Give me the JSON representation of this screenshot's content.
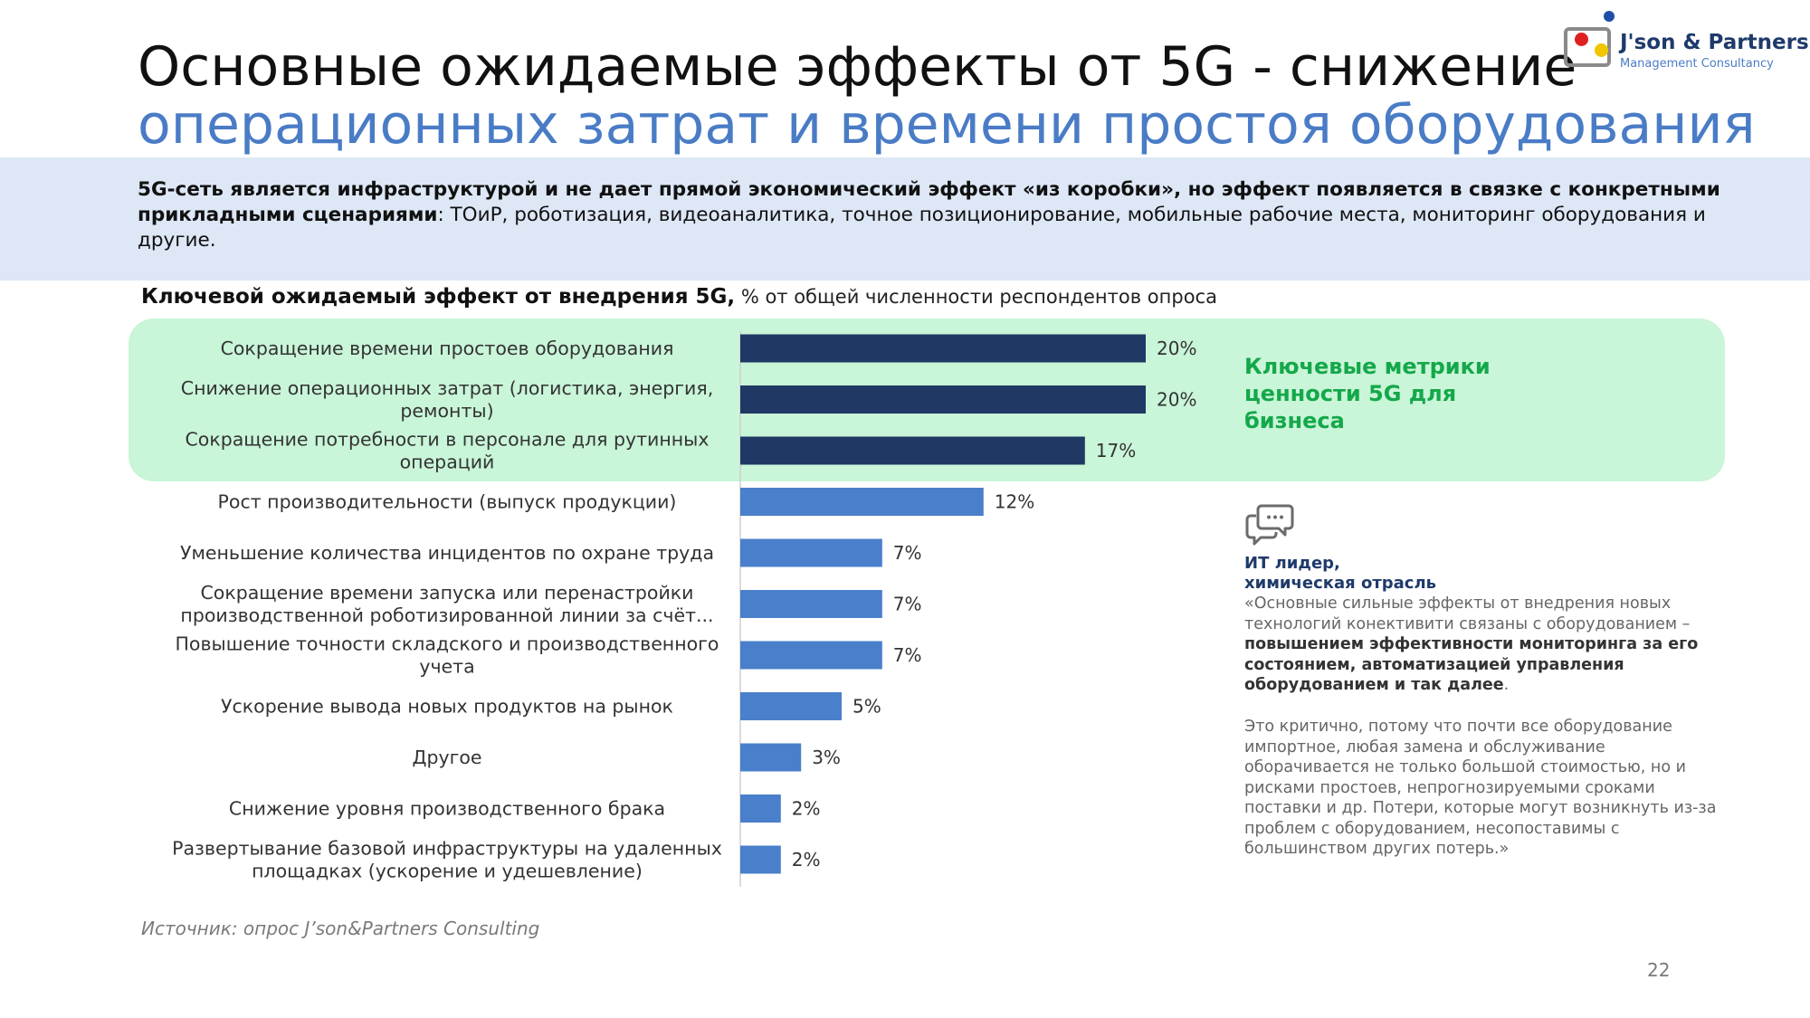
{
  "header": {
    "title_line1": "Основные ожидаемые эффекты от 5G - снижение",
    "title_line2": "операционных затрат и времени простоя оборудования"
  },
  "logo": {
    "name": "J'son & Partners",
    "subtitle": "Management Consultancy"
  },
  "summary": {
    "bold_part": "5G-сеть является инфраструктурой и не дает прямой экономический эффект «из коробки», но эффект появляется в связке с конкретными прикладными сценариями",
    "rest_part": ": ТОиР, роботизация, видеоаналитика, точное позиционирование, мобильные рабочие места, мониторинг оборудования и другие."
  },
  "chart_title": {
    "bold": "Ключевой ожидаемый эффект от внедрения 5G,",
    "unit": " % от общей численности респондентов опроса"
  },
  "highlight_label": "Ключевые метрики ценности 5G для бизнеса",
  "chart_data": {
    "type": "bar",
    "orientation": "horizontal",
    "title": "Ключевой ожидаемый эффект от внедрения 5G, % от общей численности респондентов опроса",
    "categories": [
      "Сокращение времени простоев оборудования",
      "Снижение операционных затрат (логистика, энергия, ремонты)",
      "Сокращение потребности в персонале для рутинных операций",
      "Рост производительности (выпуск продукции)",
      "Уменьшение количества инцидентов по охране труда",
      "Сокращение времени запуска или перенастройки производственной роботизированной линии за счёт...",
      "Повышение точности складского и производственного учета",
      "Ускорение вывода новых продуктов на рынок",
      "Другое",
      "Снижение уровня производственного брака",
      "Развертывание базовой инфраструктуры на удаленных площадках (ускорение и удешевление)"
    ],
    "label_lines": [
      [
        "Сокращение времени простоев оборудования"
      ],
      [
        "Снижение операционных затрат (логистика, энергия,",
        "ремонты)"
      ],
      [
        "Сокращение потребности в персонале для рутинных",
        "операций"
      ],
      [
        "Рост производительности (выпуск продукции)"
      ],
      [
        "Уменьшение количества инцидентов по охране труда"
      ],
      [
        "Сокращение времени запуска или перенастройки",
        "производственной роботизированной линии за счёт..."
      ],
      [
        "Повышение точности складского и производственного",
        "учета"
      ],
      [
        "Ускорение вывода новых продуктов на рынок"
      ],
      [
        "Другое"
      ],
      [
        "Снижение уровня производственного брака"
      ],
      [
        "Развертывание базовой инфраструктуры на удаленных",
        "площадках (ускорение и удешевление)"
      ]
    ],
    "values": [
      20,
      20,
      17,
      12,
      7,
      7,
      7,
      5,
      3,
      2,
      2
    ],
    "value_labels": [
      "20%",
      "20%",
      "17%",
      "12%",
      "7%",
      "7%",
      "7%",
      "5%",
      "3%",
      "2%",
      "2%"
    ],
    "highlighted_count": 3,
    "xlim": [
      0,
      20
    ],
    "colors": {
      "highlighted": "#1f3864",
      "normal": "#4a7fcb"
    }
  },
  "quote": {
    "author_line1": "ИТ лидер,",
    "author_line2": "химическая отрасль",
    "text_start": "«Основные сильные эффекты от внедрения новых технологий конективити связаны с оборудованием – ",
    "text_bold": "повышением эффективности мониторинга за его состоянием, автоматизацией управления оборудованием и так далее",
    "text_end": ".",
    "paragraph2": "Это критично, потому что почти все оборудование импортное, любая замена и обслуживание оборачивается не только большой стоимостью, но и рисками простоев, непрогнозируемыми сроками поставки и др. Потери, которые могут возникнуть из-за проблем с оборудованием, несопоставимы с большинством других потерь.»"
  },
  "footer": {
    "source": "Источник: опрос J’son&Partners Consulting",
    "page_number": "22"
  },
  "icons": {
    "quote": "chat-bubbles-icon"
  }
}
